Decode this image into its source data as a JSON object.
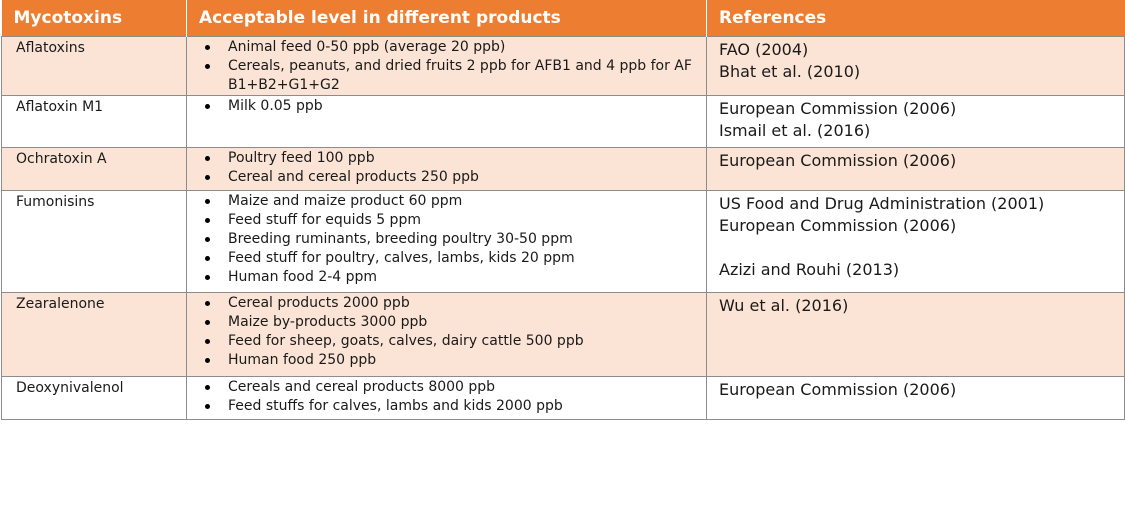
{
  "headers": {
    "mycotoxins": "Mycotoxins",
    "levels": "Acceptable level in different products",
    "references": "References"
  },
  "rows": [
    {
      "toxin": "Aflatoxins",
      "levels": [
        "Animal feed 0-50 ppb (average 20 ppb)",
        "Cereals, peanuts, and dried fruits 2 ppb for AFB1 and 4 ppb for AF B1+B2+G1+G2"
      ],
      "references": [
        "FAO (2004)",
        "Bhat et al. (2010)"
      ]
    },
    {
      "toxin": "Aflatoxin M1",
      "levels": [
        "Milk 0.05 ppb"
      ],
      "references": [
        "European Commission (2006)",
        "Ismail et al. (2016)"
      ]
    },
    {
      "toxin": "Ochratoxin A",
      "levels": [
        "Poultry feed 100 ppb",
        "Cereal and cereal products 250 ppb"
      ],
      "references": [
        "European Commission (2006)"
      ]
    },
    {
      "toxin": "Fumonisins",
      "levels": [
        "Maize and maize product 60 ppm",
        "Feed stuff for equids 5 ppm",
        "Breeding ruminants, breeding poultry 30-50 ppm",
        "Feed stuff for poultry, calves, lambs, kids 20 ppm",
        "Human food 2-4 ppm"
      ],
      "references": [
        "US Food and Drug Administration (2001)",
        "European Commission (2006)",
        "",
        "Azizi and Rouhi (2013)"
      ]
    },
    {
      "toxin": "Zearalenone",
      "levels": [
        "Cereal products 2000 ppb",
        "Maize by-products 3000 ppb",
        "Feed for sheep, goats, calves, dairy cattle 500 ppb",
        "Human food 250 ppb"
      ],
      "references": [
        "Wu et al. (2016)"
      ]
    },
    {
      "toxin": "Deoxynivalenol",
      "levels": [
        "Cereals and cereal products 8000 ppb",
        "Feed stuffs for calves, lambs and kids 2000 ppb"
      ],
      "references": [
        "European Commission (2006)"
      ]
    }
  ],
  "colors": {
    "header_bg": "#ed7d31",
    "tinted_row_bg": "#fbe4d5",
    "plain_row_bg": "#ffffff"
  }
}
